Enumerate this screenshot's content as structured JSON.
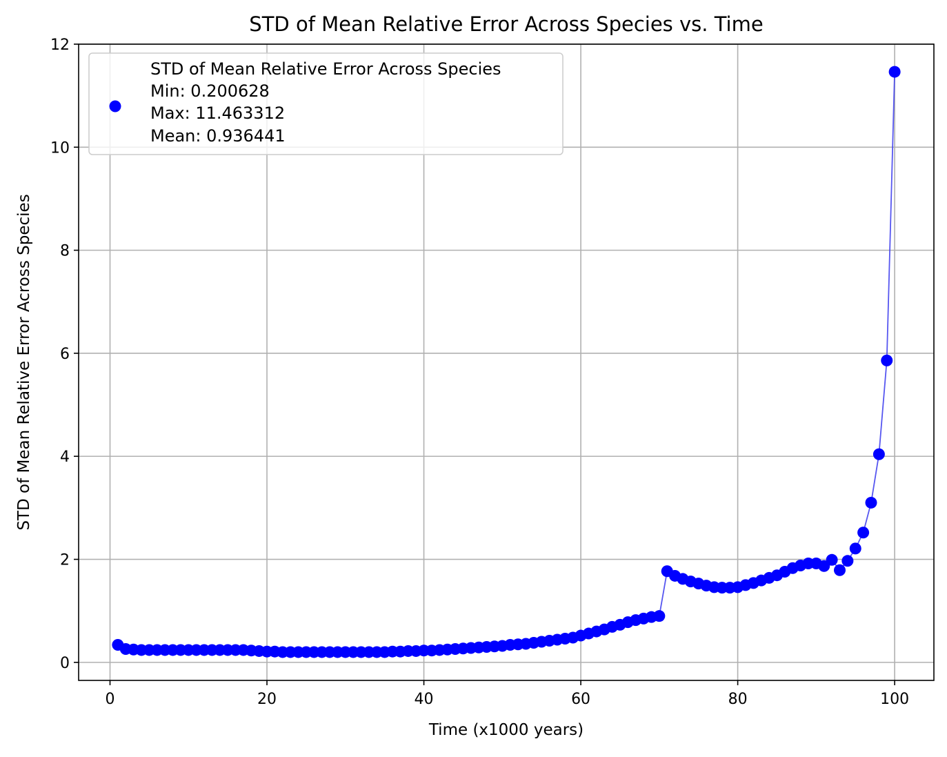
{
  "chart_data": {
    "type": "line",
    "title": "STD of Mean Relative Error Across Species vs. Time",
    "xlabel": "Time (x1000 years)",
    "ylabel": "STD of Mean Relative Error Across Species",
    "xlim": [
      -4,
      105
    ],
    "ylim": [
      -0.35,
      12.0
    ],
    "xticks": [
      0,
      20,
      40,
      60,
      80,
      100
    ],
    "yticks": [
      0,
      2,
      4,
      6,
      8,
      10,
      12
    ],
    "grid": true,
    "legend_position": "upper left",
    "colors": {
      "marker": "#0000ff",
      "line": "#4444ee",
      "grid": "#b0b0b0",
      "legend_border": "#cccccc"
    },
    "legend": {
      "lines": [
        "STD of Mean Relative Error Across Species",
        "Min: 0.200628",
        "Max: 11.463312",
        "Mean: 0.936441"
      ]
    },
    "series": [
      {
        "name": "STD of Mean Relative Error Across Species",
        "marker": "o",
        "x": [
          1,
          2,
          3,
          4,
          5,
          6,
          7,
          8,
          9,
          10,
          11,
          12,
          13,
          14,
          15,
          16,
          17,
          18,
          19,
          20,
          21,
          22,
          23,
          24,
          25,
          26,
          27,
          28,
          29,
          30,
          31,
          32,
          33,
          34,
          35,
          36,
          37,
          38,
          39,
          40,
          41,
          42,
          43,
          44,
          45,
          46,
          47,
          48,
          49,
          50,
          51,
          52,
          53,
          54,
          55,
          56,
          57,
          58,
          59,
          60,
          61,
          62,
          63,
          64,
          65,
          66,
          67,
          68,
          69,
          70,
          71,
          72,
          73,
          74,
          75,
          76,
          77,
          78,
          79,
          80,
          81,
          82,
          83,
          84,
          85,
          86,
          87,
          88,
          89,
          90,
          91,
          92,
          93,
          94,
          95,
          96,
          97,
          98,
          99,
          100
        ],
        "y": [
          0.34,
          0.26,
          0.25,
          0.24,
          0.24,
          0.24,
          0.24,
          0.24,
          0.24,
          0.24,
          0.24,
          0.24,
          0.24,
          0.24,
          0.24,
          0.24,
          0.24,
          0.23,
          0.22,
          0.21,
          0.21,
          0.2,
          0.2,
          0.2,
          0.2,
          0.2,
          0.2,
          0.2,
          0.2,
          0.2,
          0.2,
          0.2,
          0.2,
          0.2,
          0.2,
          0.21,
          0.21,
          0.22,
          0.22,
          0.23,
          0.23,
          0.24,
          0.25,
          0.26,
          0.27,
          0.28,
          0.29,
          0.3,
          0.31,
          0.32,
          0.34,
          0.35,
          0.36,
          0.38,
          0.4,
          0.42,
          0.44,
          0.46,
          0.48,
          0.52,
          0.56,
          0.6,
          0.64,
          0.69,
          0.73,
          0.78,
          0.82,
          0.85,
          0.88,
          0.9,
          1.77,
          1.68,
          1.62,
          1.57,
          1.53,
          1.49,
          1.46,
          1.45,
          1.45,
          1.46,
          1.5,
          1.54,
          1.59,
          1.64,
          1.69,
          1.76,
          1.83,
          1.88,
          1.92,
          1.92,
          1.87,
          1.99,
          1.79,
          1.97,
          2.21,
          2.52,
          3.1,
          4.04,
          5.86,
          11.463312
        ]
      }
    ]
  }
}
